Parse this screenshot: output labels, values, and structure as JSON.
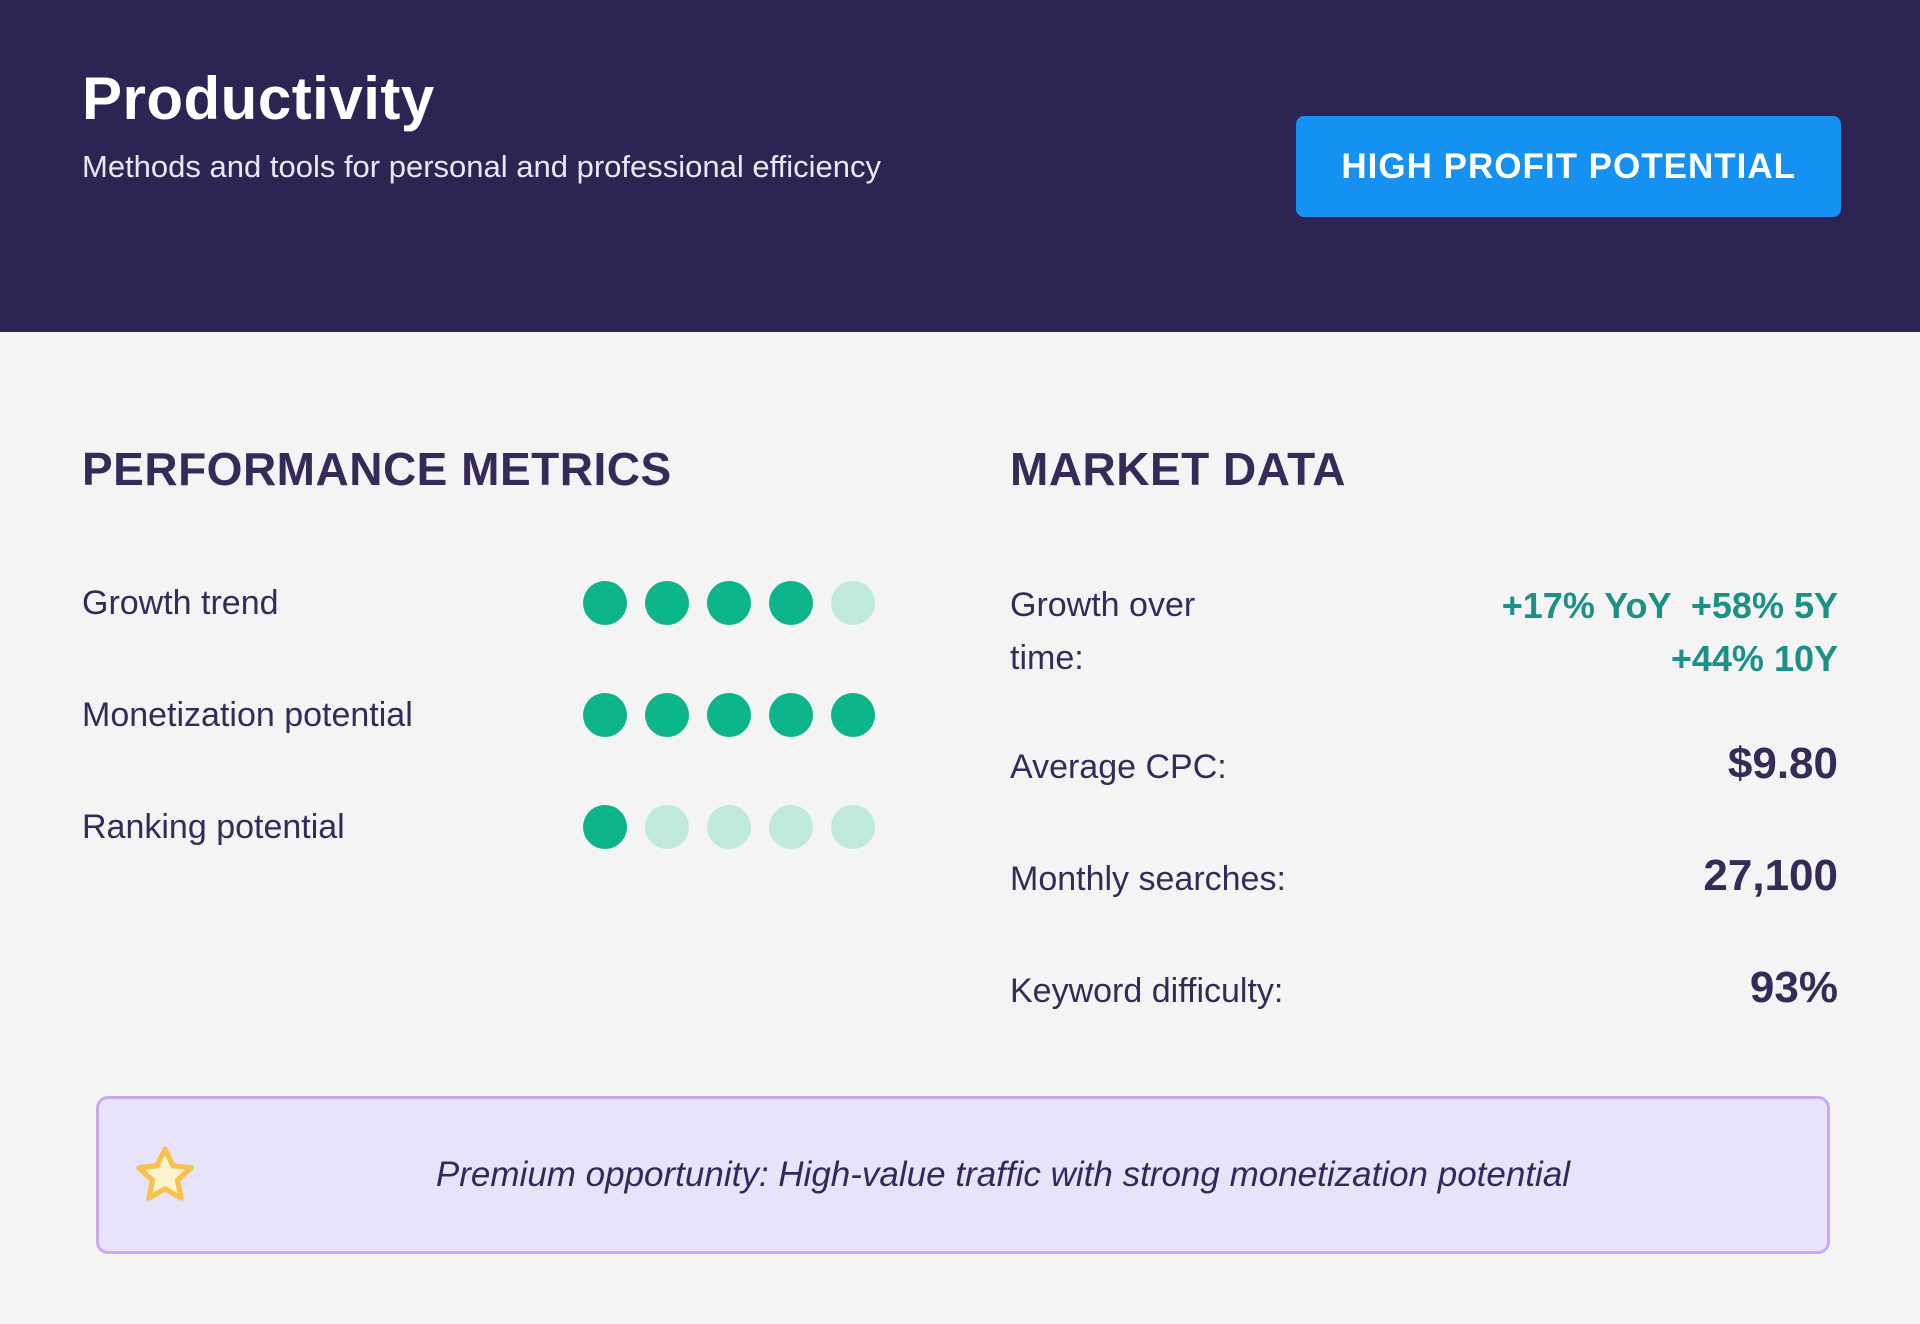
{
  "header": {
    "title": "Productivity",
    "subtitle": "Methods and tools for personal and professional efficiency",
    "badge_label": "HIGH PROFIT POTENTIAL"
  },
  "performance": {
    "heading": "PERFORMANCE METRICS",
    "rows": [
      {
        "label": "Growth trend",
        "filled": 4,
        "total": 5
      },
      {
        "label": "Monetization potential",
        "filled": 5,
        "total": 5
      },
      {
        "label": "Ranking potential",
        "filled": 1,
        "total": 5
      }
    ]
  },
  "market": {
    "heading": "MARKET DATA",
    "growth": {
      "label": "Growth over time:",
      "line1": "+17% YoY  +58% 5Y",
      "line2": "+44% 10Y"
    },
    "rows": [
      {
        "label": "Average CPC:",
        "value": "$9.80"
      },
      {
        "label": "Monthly searches:",
        "value": "27,100"
      },
      {
        "label": "Keyword difficulty:",
        "value": "93%"
      }
    ]
  },
  "banner": {
    "icon": "star-icon",
    "text": "Premium opportunity: High-value traffic with strong monetization potential"
  },
  "colors": {
    "header_bg": "#2e2453",
    "page_bg": "#f4f4f5",
    "ink": "#352a58",
    "teal": "#1a9184",
    "dot_filled": "#0cb48a",
    "dot_empty": "#bfe9dd",
    "badge_bg": "#1591f2",
    "banner_bg": "#e6e3fa",
    "banner_border": "#c9a8ee",
    "star_fill": "#fbf3cd",
    "star_stroke": "#f8c04c"
  }
}
